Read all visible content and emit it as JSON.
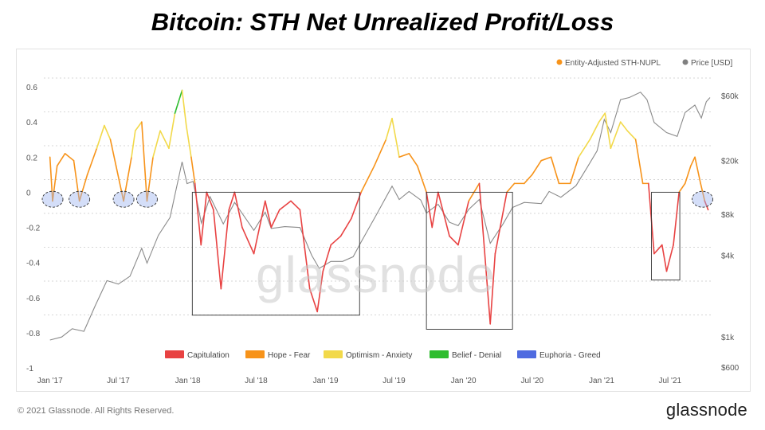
{
  "header": {
    "title": "Bitcoin: STH Net Unrealized Profit/Loss"
  },
  "footer": {
    "copyright": "© 2021 Glassnode. All Rights Reserved.",
    "brand": "glassnode"
  },
  "watermark": "glassnode",
  "chart_data": {
    "type": "line",
    "title": "Bitcoin: STH Net Unrealized Profit/Loss",
    "legend_top": [
      {
        "label": "Entity-Adjusted STH-NUPL",
        "color": "#f7931a"
      },
      {
        "label": "Price [USD]",
        "color": "#808080"
      }
    ],
    "legend_bottom": [
      {
        "label": "Capitulation",
        "color": "#e84242"
      },
      {
        "label": "Hope - Fear",
        "color": "#f7931a"
      },
      {
        "label": "Optimism - Anxiety",
        "color": "#f2d94a"
      },
      {
        "label": "Belief - Denial",
        "color": "#2ebd2e"
      },
      {
        "label": "Euphoria - Greed",
        "color": "#4f6be0"
      }
    ],
    "x_ticks": [
      "Jan '17",
      "Jul '17",
      "Jan '18",
      "Jul '18",
      "Jan '19",
      "Jul '19",
      "Jan '20",
      "Jul '20",
      "Jan '21",
      "Jul '21"
    ],
    "x_tick_dates": [
      "2017-01-01",
      "2017-07-01",
      "2018-01-01",
      "2018-07-01",
      "2019-01-01",
      "2019-07-01",
      "2020-01-01",
      "2020-07-01",
      "2021-01-01",
      "2021-07-01"
    ],
    "x_range": [
      "2016-12-20",
      "2021-10-15"
    ],
    "y_left": {
      "ticks": [
        "0.6",
        "0.4",
        "0.2",
        "0",
        "-0.2",
        "-0.4",
        "-0.6",
        "-0.8",
        "-1"
      ],
      "values": [
        0.6,
        0.4,
        0.2,
        0,
        -0.2,
        -0.4,
        -0.6,
        -0.8,
        -1
      ],
      "range": [
        -1,
        0.65
      ]
    },
    "y_right": {
      "scale": "log",
      "ticks": [
        "$60k",
        "$20k",
        "$8k",
        "$4k",
        "$1k",
        "$600"
      ],
      "values": [
        60000,
        20000,
        8000,
        4000,
        1000,
        600
      ]
    },
    "grid": "horizontal-dotted",
    "nupl_series": {
      "name": "Entity-Adjusted STH-NUPL",
      "points": [
        [
          "2017-01-01",
          0.2
        ],
        [
          "2017-01-08",
          -0.05
        ],
        [
          "2017-01-20",
          0.15
        ],
        [
          "2017-02-10",
          0.22
        ],
        [
          "2017-03-05",
          0.18
        ],
        [
          "2017-03-20",
          -0.05
        ],
        [
          "2017-04-10",
          0.1
        ],
        [
          "2017-05-05",
          0.25
        ],
        [
          "2017-05-25",
          0.38
        ],
        [
          "2017-06-10",
          0.3
        ],
        [
          "2017-06-25",
          0.15
        ],
        [
          "2017-07-15",
          -0.05
        ],
        [
          "2017-08-05",
          0.2
        ],
        [
          "2017-08-15",
          0.35
        ],
        [
          "2017-09-01",
          0.4
        ],
        [
          "2017-09-15",
          -0.05
        ],
        [
          "2017-10-01",
          0.2
        ],
        [
          "2017-10-20",
          0.35
        ],
        [
          "2017-11-12",
          0.25
        ],
        [
          "2017-11-28",
          0.45
        ],
        [
          "2017-12-17",
          0.58
        ],
        [
          "2017-12-28",
          0.38
        ],
        [
          "2018-01-10",
          0.2
        ],
        [
          "2018-01-20",
          0.05
        ],
        [
          "2018-02-05",
          -0.3
        ],
        [
          "2018-02-20",
          0.0
        ],
        [
          "2018-03-10",
          -0.1
        ],
        [
          "2018-03-30",
          -0.55
        ],
        [
          "2018-04-20",
          -0.1
        ],
        [
          "2018-05-05",
          0.0
        ],
        [
          "2018-05-25",
          -0.2
        ],
        [
          "2018-06-25",
          -0.35
        ],
        [
          "2018-07-25",
          -0.05
        ],
        [
          "2018-08-10",
          -0.2
        ],
        [
          "2018-09-01",
          -0.1
        ],
        [
          "2018-10-01",
          -0.05
        ],
        [
          "2018-10-25",
          -0.1
        ],
        [
          "2018-11-20",
          -0.55
        ],
        [
          "2018-12-10",
          -0.68
        ],
        [
          "2018-12-25",
          -0.45
        ],
        [
          "2019-01-15",
          -0.3
        ],
        [
          "2019-02-10",
          -0.25
        ],
        [
          "2019-03-10",
          -0.15
        ],
        [
          "2019-04-05",
          0.0
        ],
        [
          "2019-05-10",
          0.15
        ],
        [
          "2019-06-10",
          0.3
        ],
        [
          "2019-06-26",
          0.42
        ],
        [
          "2019-07-15",
          0.2
        ],
        [
          "2019-08-10",
          0.22
        ],
        [
          "2019-09-01",
          0.15
        ],
        [
          "2019-09-25",
          0.0
        ],
        [
          "2019-10-10",
          -0.2
        ],
        [
          "2019-10-26",
          0.0
        ],
        [
          "2019-11-25",
          -0.25
        ],
        [
          "2019-12-18",
          -0.3
        ],
        [
          "2020-01-15",
          -0.05
        ],
        [
          "2020-02-12",
          0.05
        ],
        [
          "2020-03-12",
          -0.75
        ],
        [
          "2020-03-25",
          -0.35
        ],
        [
          "2020-04-25",
          0.0
        ],
        [
          "2020-05-15",
          0.05
        ],
        [
          "2020-06-10",
          0.05
        ],
        [
          "2020-07-01",
          0.1
        ],
        [
          "2020-07-25",
          0.18
        ],
        [
          "2020-08-20",
          0.2
        ],
        [
          "2020-09-10",
          0.05
        ],
        [
          "2020-10-10",
          0.05
        ],
        [
          "2020-11-01",
          0.2
        ],
        [
          "2020-12-01",
          0.3
        ],
        [
          "2020-12-25",
          0.4
        ],
        [
          "2021-01-10",
          0.45
        ],
        [
          "2021-01-25",
          0.25
        ],
        [
          "2021-02-20",
          0.4
        ],
        [
          "2021-03-10",
          0.35
        ],
        [
          "2021-04-01",
          0.3
        ],
        [
          "2021-04-20",
          0.05
        ],
        [
          "2021-05-05",
          0.05
        ],
        [
          "2021-05-20",
          -0.35
        ],
        [
          "2021-06-10",
          -0.3
        ],
        [
          "2021-06-22",
          -0.45
        ],
        [
          "2021-07-10",
          -0.3
        ],
        [
          "2021-07-25",
          0.0
        ],
        [
          "2021-08-10",
          0.05
        ],
        [
          "2021-08-25",
          0.15
        ],
        [
          "2021-09-05",
          0.2
        ],
        [
          "2021-09-20",
          0.05
        ],
        [
          "2021-10-01",
          -0.05
        ],
        [
          "2021-10-10",
          -0.1
        ]
      ]
    },
    "price_series": {
      "name": "Price [USD]",
      "points": [
        [
          "2017-01-01",
          950
        ],
        [
          "2017-02-01",
          1000
        ],
        [
          "2017-03-01",
          1150
        ],
        [
          "2017-04-01",
          1100
        ],
        [
          "2017-05-01",
          1700
        ],
        [
          "2017-06-01",
          2600
        ],
        [
          "2017-07-01",
          2450
        ],
        [
          "2017-08-01",
          2800
        ],
        [
          "2017-09-01",
          4500
        ],
        [
          "2017-09-15",
          3500
        ],
        [
          "2017-10-15",
          5600
        ],
        [
          "2017-11-15",
          7600
        ],
        [
          "2017-12-17",
          19500
        ],
        [
          "2017-12-30",
          13500
        ],
        [
          "2018-01-15",
          14000
        ],
        [
          "2018-02-06",
          6900
        ],
        [
          "2018-03-01",
          10800
        ],
        [
          "2018-04-05",
          6800
        ],
        [
          "2018-05-05",
          9800
        ],
        [
          "2018-06-25",
          6100
        ],
        [
          "2018-07-25",
          8300
        ],
        [
          "2018-08-10",
          6300
        ],
        [
          "2018-09-15",
          6500
        ],
        [
          "2018-10-25",
          6400
        ],
        [
          "2018-11-25",
          4000
        ],
        [
          "2018-12-15",
          3200
        ],
        [
          "2019-01-15",
          3600
        ],
        [
          "2019-02-15",
          3600
        ],
        [
          "2019-03-15",
          3900
        ],
        [
          "2019-04-05",
          5000
        ],
        [
          "2019-05-15",
          7900
        ],
        [
          "2019-06-26",
          12900
        ],
        [
          "2019-07-15",
          10300
        ],
        [
          "2019-08-10",
          11800
        ],
        [
          "2019-09-10",
          10200
        ],
        [
          "2019-09-25",
          8200
        ],
        [
          "2019-10-26",
          9500
        ],
        [
          "2019-11-25",
          7000
        ],
        [
          "2019-12-18",
          6600
        ],
        [
          "2020-01-15",
          8700
        ],
        [
          "2020-02-12",
          10300
        ],
        [
          "2020-03-12",
          4900
        ],
        [
          "2020-04-15",
          6800
        ],
        [
          "2020-05-10",
          9000
        ],
        [
          "2020-06-10",
          9800
        ],
        [
          "2020-07-25",
          9600
        ],
        [
          "2020-08-15",
          11800
        ],
        [
          "2020-09-15",
          10700
        ],
        [
          "2020-10-25",
          13000
        ],
        [
          "2020-11-25",
          18000
        ],
        [
          "2020-12-20",
          23500
        ],
        [
          "2021-01-08",
          40000
        ],
        [
          "2021-01-25",
          32000
        ],
        [
          "2021-02-20",
          56000
        ],
        [
          "2021-03-15",
          58000
        ],
        [
          "2021-04-14",
          63500
        ],
        [
          "2021-05-01",
          56000
        ],
        [
          "2021-05-20",
          38000
        ],
        [
          "2021-06-22",
          32000
        ],
        [
          "2021-07-20",
          30000
        ],
        [
          "2021-08-10",
          45000
        ],
        [
          "2021-09-05",
          51000
        ],
        [
          "2021-09-22",
          41000
        ],
        [
          "2021-10-05",
          54000
        ],
        [
          "2021-10-15",
          58000
        ]
      ]
    },
    "capitulation_boxes": [
      {
        "start": "2018-01-13",
        "end": "2019-04-01",
        "ymin": -0.7,
        "ymax": 0.0
      },
      {
        "start": "2019-09-25",
        "end": "2020-05-10",
        "ymin": -0.78,
        "ymax": 0.0
      },
      {
        "start": "2021-05-13",
        "end": "2021-07-27",
        "ymin": -0.5,
        "ymax": 0.0
      }
    ],
    "highlight_circles": [
      {
        "center": "2017-01-08",
        "y": -0.04
      },
      {
        "center": "2017-03-20",
        "y": -0.04
      },
      {
        "center": "2017-07-15",
        "y": -0.04
      },
      {
        "center": "2017-09-15",
        "y": -0.04
      },
      {
        "center": "2021-09-25",
        "y": -0.04
      }
    ]
  }
}
